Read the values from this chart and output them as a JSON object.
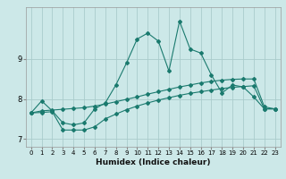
{
  "xlabel": "Humidex (Indice chaleur)",
  "ylabel": "",
  "bg_color": "#cce8e8",
  "grid_color": "#aacccc",
  "line_color": "#1a7a6e",
  "xlim": [
    -0.5,
    23.5
  ],
  "ylim": [
    6.8,
    10.3
  ],
  "yticks": [
    7,
    8,
    9
  ],
  "xticks": [
    0,
    1,
    2,
    3,
    4,
    5,
    6,
    7,
    8,
    9,
    10,
    11,
    12,
    13,
    14,
    15,
    16,
    17,
    18,
    19,
    20,
    21,
    22,
    23
  ],
  "series1_x": [
    0,
    1,
    2,
    3,
    4,
    5,
    6,
    7,
    8,
    9,
    10,
    11,
    12,
    13,
    14,
    15,
    16,
    17,
    18,
    19,
    20,
    21,
    22,
    23
  ],
  "series1_y": [
    7.65,
    7.95,
    7.7,
    7.4,
    7.35,
    7.4,
    7.75,
    7.9,
    8.35,
    8.9,
    9.5,
    9.65,
    9.45,
    8.7,
    9.95,
    9.25,
    9.15,
    8.6,
    8.15,
    8.35,
    8.3,
    8.05,
    7.75,
    7.75
  ],
  "series2_x": [
    0,
    1,
    2,
    3,
    4,
    5,
    6,
    7,
    8,
    9,
    10,
    11,
    12,
    13,
    14,
    15,
    16,
    17,
    18,
    19,
    20,
    21,
    22,
    23
  ],
  "series2_y": [
    7.65,
    7.7,
    7.72,
    7.74,
    7.76,
    7.78,
    7.82,
    7.87,
    7.93,
    7.99,
    8.05,
    8.12,
    8.18,
    8.24,
    8.3,
    8.35,
    8.4,
    8.44,
    8.47,
    8.49,
    8.5,
    8.5,
    7.8,
    7.75
  ],
  "series3_x": [
    0,
    1,
    2,
    3,
    4,
    5,
    6,
    7,
    8,
    9,
    10,
    11,
    12,
    13,
    14,
    15,
    16,
    17,
    18,
    19,
    20,
    21,
    22,
    23
  ],
  "series3_y": [
    7.65,
    7.66,
    7.68,
    7.22,
    7.22,
    7.22,
    7.3,
    7.5,
    7.62,
    7.73,
    7.82,
    7.9,
    7.97,
    8.03,
    8.09,
    8.14,
    8.18,
    8.22,
    8.26,
    8.29,
    8.31,
    8.33,
    7.75,
    7.75
  ],
  "xlabel_fontsize": 6.5,
  "tick_fontsize": 5,
  "linewidth": 0.8,
  "markersize": 2.0
}
